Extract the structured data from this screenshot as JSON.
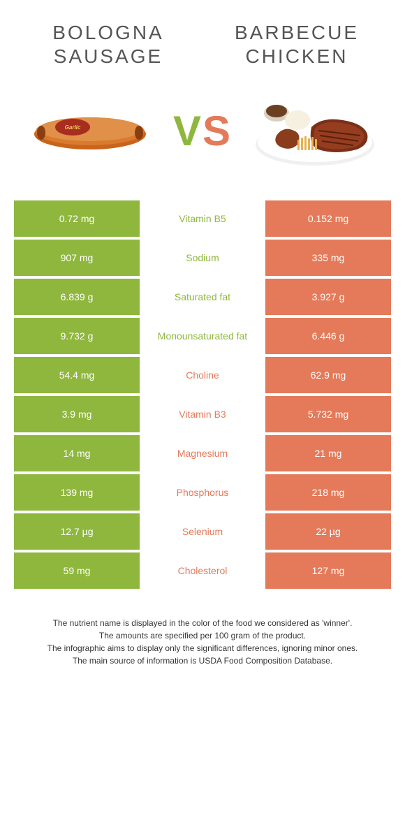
{
  "colors": {
    "left": "#8fb73e",
    "right": "#e47a5a",
    "mid_bg": "#ffffff",
    "title": "#555555"
  },
  "foods": {
    "left": {
      "name_line1": "BOLOGNA",
      "name_line2": "SAUSAGE"
    },
    "right": {
      "name_line1": "BARBECUE",
      "name_line2": "CHICKEN"
    }
  },
  "vs_label": {
    "v": "V",
    "s": "S"
  },
  "rows": [
    {
      "nutrient": "Vitamin B5",
      "left": "0.72 mg",
      "right": "0.152 mg",
      "winner": "left"
    },
    {
      "nutrient": "Sodium",
      "left": "907 mg",
      "right": "335 mg",
      "winner": "left"
    },
    {
      "nutrient": "Saturated fat",
      "left": "6.839 g",
      "right": "3.927 g",
      "winner": "left"
    },
    {
      "nutrient": "Monounsaturated fat",
      "left": "9.732 g",
      "right": "6.446 g",
      "winner": "left"
    },
    {
      "nutrient": "Choline",
      "left": "54.4 mg",
      "right": "62.9 mg",
      "winner": "right"
    },
    {
      "nutrient": "Vitamin B3",
      "left": "3.9 mg",
      "right": "5.732 mg",
      "winner": "right"
    },
    {
      "nutrient": "Magnesium",
      "left": "14 mg",
      "right": "21 mg",
      "winner": "right"
    },
    {
      "nutrient": "Phosphorus",
      "left": "139 mg",
      "right": "218 mg",
      "winner": "right"
    },
    {
      "nutrient": "Selenium",
      "left": "12.7 µg",
      "right": "22 µg",
      "winner": "right"
    },
    {
      "nutrient": "Cholesterol",
      "left": "59 mg",
      "right": "127 mg",
      "winner": "right"
    }
  ],
  "footnotes": [
    "The nutrient name is displayed in the color of the food we considered as 'winner'.",
    "The amounts are specified per 100 gram of the product.",
    "The infographic aims to display only the significant differences, ignoring minor ones.",
    "The main source of information is USDA Food Composition Database."
  ]
}
